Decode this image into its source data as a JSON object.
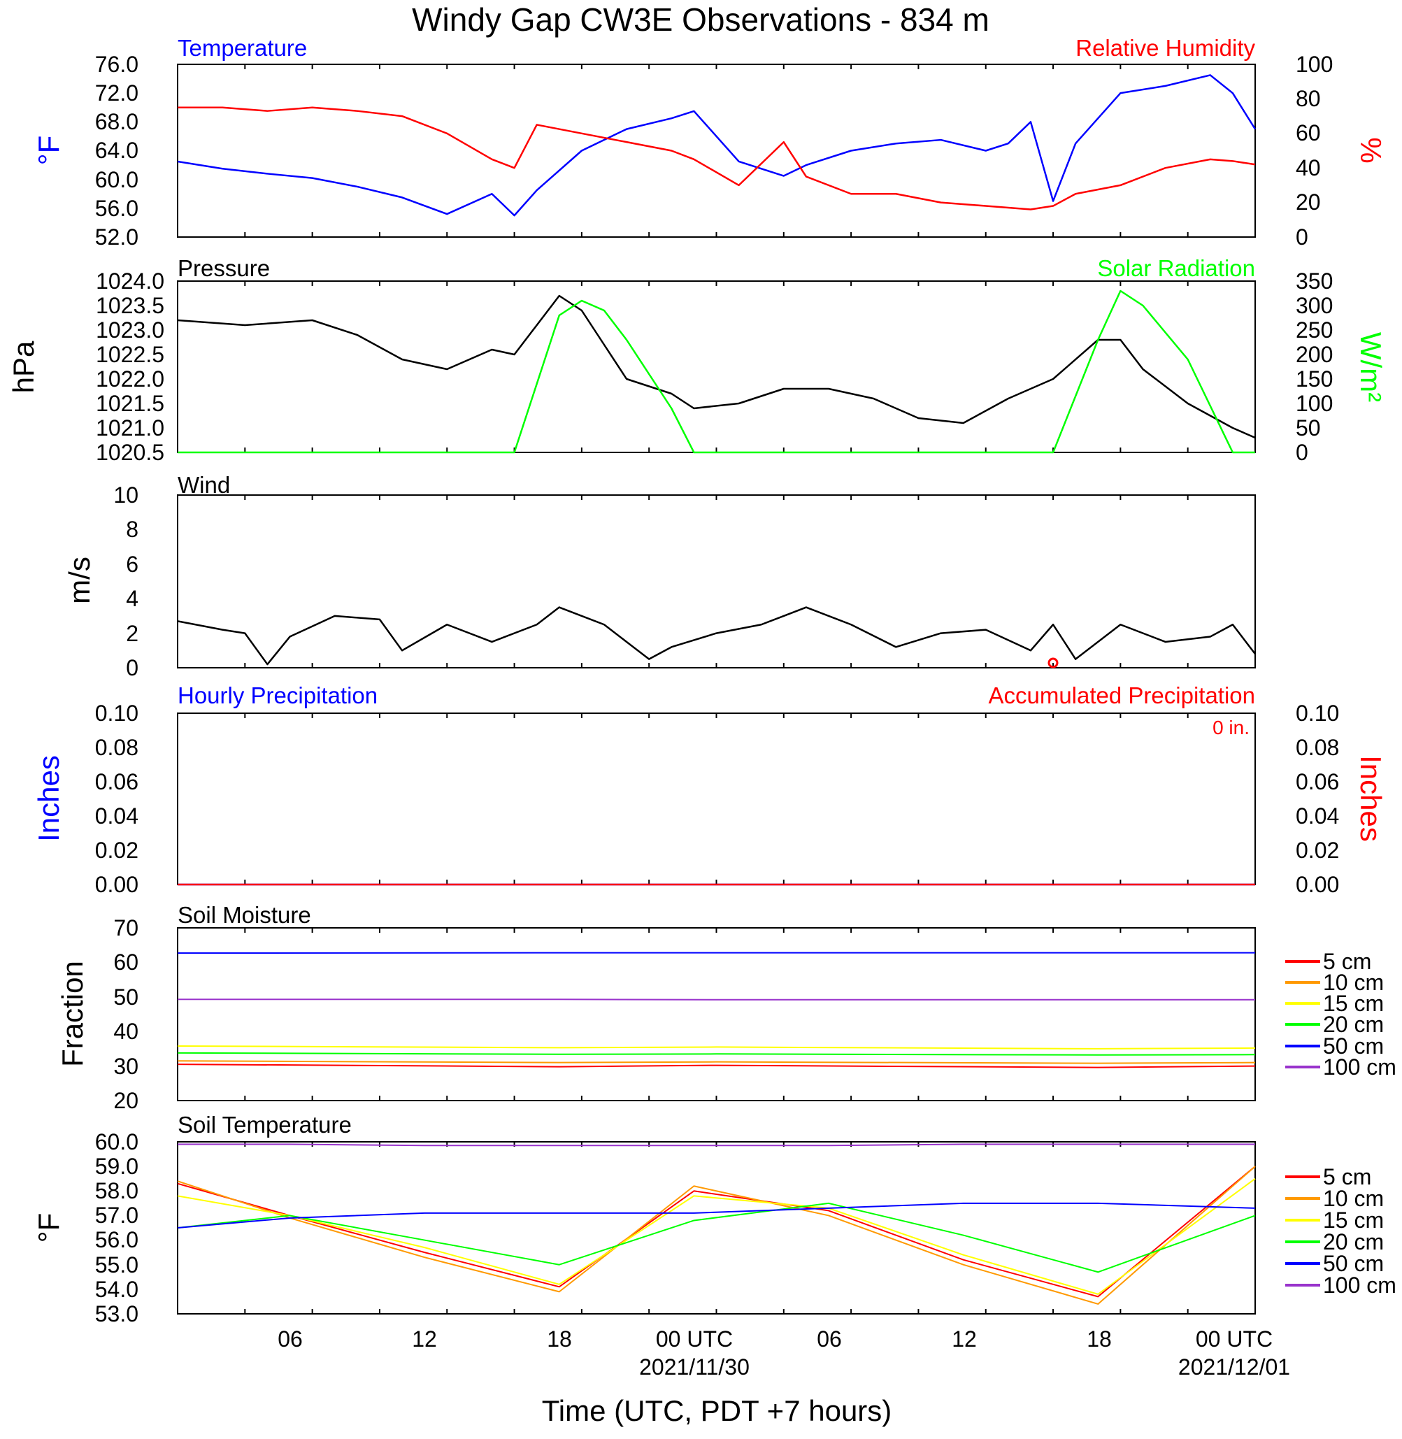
{
  "title": "Windy Gap CW3E Observations - 834 m",
  "x_axis": {
    "title": "Time (UTC, PDT +7 hours)",
    "tick_labels": [
      "06",
      "12",
      "18",
      "00 UTC",
      "06",
      "12",
      "18",
      "00 UTC"
    ],
    "date_labels": [
      "2021/11/30",
      "2021/12/01"
    ]
  },
  "panels": {
    "temperature": {
      "left_title": "Temperature",
      "right_title": "Relative Humidity",
      "left_unit": "°F",
      "right_unit": "%",
      "left_ticks": [
        "52.0",
        "56.0",
        "60.0",
        "64.0",
        "68.0",
        "72.0",
        "76.0"
      ],
      "right_ticks": [
        "0",
        "20",
        "40",
        "60",
        "80",
        "100"
      ]
    },
    "pressure": {
      "left_title": "Pressure",
      "right_title": "Solar Radiation",
      "left_unit": "hPa",
      "right_unit": "W/m²",
      "left_ticks": [
        "1020.5",
        "1021.0",
        "1021.5",
        "1022.0",
        "1022.5",
        "1023.0",
        "1023.5",
        "1024.0"
      ],
      "right_ticks": [
        "0",
        "50",
        "100",
        "150",
        "200",
        "250",
        "300",
        "350"
      ]
    },
    "wind": {
      "left_title": "Wind",
      "left_unit": "m/s",
      "left_ticks": [
        "0",
        "2",
        "4",
        "6",
        "8",
        "10"
      ]
    },
    "precip": {
      "left_title": "Hourly Precipitation",
      "right_title": "Accumulated Precipitation",
      "annotation": "0 in.",
      "left_unit": "Inches",
      "right_unit": "Inches",
      "left_ticks": [
        "0.00",
        "0.02",
        "0.04",
        "0.06",
        "0.08",
        "0.10"
      ],
      "right_ticks": [
        "0.00",
        "0.02",
        "0.04",
        "0.06",
        "0.08",
        "0.10"
      ]
    },
    "soil_moisture": {
      "left_title": "Soil Moisture",
      "left_unit": "Fraction",
      "left_ticks": [
        "20",
        "30",
        "40",
        "50",
        "60",
        "70"
      ],
      "legend": [
        "5 cm",
        "10 cm",
        "15 cm",
        "20 cm",
        "50 cm",
        "100 cm"
      ]
    },
    "soil_temperature": {
      "left_title": "Soil Temperature",
      "left_unit": "°F",
      "left_ticks": [
        "53.0",
        "54.0",
        "55.0",
        "56.0",
        "57.0",
        "58.0",
        "59.0",
        "60.0"
      ],
      "legend": [
        "5 cm",
        "10 cm",
        "15 cm",
        "20 cm",
        "50 cm",
        "100 cm"
      ]
    }
  },
  "chart_data": [
    {
      "type": "line",
      "title": "Temperature",
      "x": [
        "11/29 01",
        "11/29 03",
        "11/29 05",
        "11/29 07",
        "11/29 09",
        "11/29 11",
        "11/29 13",
        "11/29 15",
        "11/29 16",
        "11/29 17",
        "11/29 19",
        "11/29 21",
        "11/29 23",
        "11/30 00",
        "11/30 02",
        "11/30 04",
        "11/30 05",
        "11/30 07",
        "11/30 09",
        "11/30 11",
        "11/30 13",
        "11/30 14",
        "11/30 15",
        "11/30 16",
        "11/30 17",
        "11/30 19",
        "11/30 21",
        "11/30 23",
        "12/01 00",
        "12/01 01"
      ],
      "series": [
        {
          "name": "Temperature",
          "axis": "left",
          "color": "#0000ff",
          "values": [
            62.5,
            61.5,
            60.8,
            60.2,
            59.0,
            57.5,
            55.2,
            58.0,
            55.0,
            58.5,
            64.0,
            67.0,
            68.5,
            69.5,
            62.5,
            60.5,
            62.0,
            64.0,
            65.0,
            65.5,
            64.0,
            65.0,
            68.0,
            57.0,
            65.0,
            72.0,
            73.0,
            74.5,
            72.0,
            67.0
          ]
        },
        {
          "name": "Relative Humidity",
          "axis": "right",
          "color": "#ff0000",
          "values": [
            75,
            75,
            73,
            75,
            73,
            70,
            60,
            45,
            40,
            65,
            60,
            55,
            50,
            45,
            30,
            55,
            35,
            25,
            25,
            20,
            18,
            17,
            16,
            18,
            25,
            30,
            40,
            45,
            44,
            42
          ]
        }
      ],
      "left_ylim": [
        52,
        76
      ],
      "right_ylim": [
        0,
        100
      ]
    },
    {
      "type": "line",
      "title": "Pressure",
      "x": [
        "11/29 01",
        "11/29 04",
        "11/29 07",
        "11/29 09",
        "11/29 11",
        "11/29 13",
        "11/29 15",
        "11/29 16",
        "11/29 18",
        "11/29 19",
        "11/29 20",
        "11/29 21",
        "11/29 23",
        "11/30 00",
        "11/30 02",
        "11/30 04",
        "11/30 06",
        "11/30 08",
        "11/30 10",
        "11/30 12",
        "11/30 14",
        "11/30 16",
        "11/30 18",
        "11/30 19",
        "11/30 20",
        "11/30 22",
        "12/01 00",
        "12/01 01"
      ],
      "series": [
        {
          "name": "Pressure",
          "axis": "left",
          "color": "#000000",
          "values": [
            1023.2,
            1023.1,
            1023.2,
            1022.9,
            1022.4,
            1022.2,
            1022.6,
            1022.5,
            1023.7,
            1023.4,
            1022.7,
            1022.0,
            1021.7,
            1021.4,
            1021.5,
            1021.8,
            1021.8,
            1021.6,
            1021.2,
            1021.1,
            1021.6,
            1022.0,
            1022.8,
            1022.8,
            1022.2,
            1021.5,
            1021.0,
            1020.8
          ]
        },
        {
          "name": "Solar Radiation",
          "axis": "right",
          "color": "#00ff00",
          "values": [
            0,
            0,
            0,
            0,
            0,
            0,
            0,
            0,
            280,
            310,
            290,
            230,
            90,
            0,
            0,
            0,
            0,
            0,
            0,
            0,
            0,
            0,
            230,
            330,
            300,
            190,
            0,
            0
          ]
        }
      ],
      "left_ylim": [
        1020.5,
        1024.0
      ],
      "right_ylim": [
        0,
        350
      ]
    },
    {
      "type": "line",
      "title": "Wind",
      "x": [
        "11/29 01",
        "11/29 03",
        "11/29 04",
        "11/29 05",
        "11/29 06",
        "11/29 08",
        "11/29 10",
        "11/29 11",
        "11/29 13",
        "11/29 15",
        "11/29 17",
        "11/29 18",
        "11/29 20",
        "11/29 21",
        "11/29 22",
        "11/29 23",
        "11/30 01",
        "11/30 03",
        "11/30 04",
        "11/30 05",
        "11/30 07",
        "11/30 09",
        "11/30 11",
        "11/30 13",
        "11/30 15",
        "11/30 16",
        "11/30 17",
        "11/30 19",
        "11/30 21",
        "11/30 23",
        "12/01 00",
        "12/01 01"
      ],
      "series": [
        {
          "name": "Wind",
          "color": "#000000",
          "values": [
            2.7,
            2.2,
            2.0,
            0.2,
            1.8,
            3.0,
            2.8,
            1.0,
            2.5,
            1.5,
            2.5,
            3.5,
            2.5,
            1.5,
            0.5,
            1.2,
            2.0,
            2.5,
            3.0,
            3.5,
            2.5,
            1.2,
            2.0,
            2.2,
            1.0,
            2.5,
            0.5,
            2.5,
            1.5,
            1.8,
            2.5,
            0.8
          ]
        }
      ],
      "ylim": [
        0,
        10
      ]
    },
    {
      "type": "line",
      "title": "Hourly Precipitation",
      "series": [
        {
          "name": "Hourly Precipitation",
          "color": "#0000ff",
          "values": [
            0,
            0
          ]
        },
        {
          "name": "Accumulated Precipitation",
          "color": "#ff0000",
          "values": [
            0,
            0
          ]
        }
      ],
      "ylim": [
        0,
        0.1
      ]
    },
    {
      "type": "line",
      "title": "Soil Moisture",
      "x": [
        "11/29 01",
        "11/29 18",
        "11/30 01",
        "11/30 18",
        "12/01 01"
      ],
      "series": [
        {
          "name": "5 cm",
          "color": "#ff0000",
          "values": [
            30.5,
            29.8,
            30.2,
            29.6,
            30.0
          ]
        },
        {
          "name": "10 cm",
          "color": "#ff9900",
          "values": [
            31.5,
            31.0,
            31.2,
            30.8,
            31.0
          ]
        },
        {
          "name": "15 cm",
          "color": "#ffff00",
          "values": [
            35.8,
            35.3,
            35.5,
            35.0,
            35.2
          ]
        },
        {
          "name": "20 cm",
          "color": "#00ff00",
          "values": [
            33.8,
            33.4,
            33.5,
            33.2,
            33.3
          ]
        },
        {
          "name": "50 cm",
          "color": "#0000ff",
          "values": [
            62.7,
            62.8,
            62.8,
            62.8,
            62.8
          ]
        },
        {
          "name": "100 cm",
          "color": "#9933cc",
          "values": [
            49.3,
            49.3,
            49.2,
            49.2,
            49.2
          ]
        }
      ],
      "ylim": [
        20,
        70
      ]
    },
    {
      "type": "line",
      "title": "Soil Temperature",
      "x": [
        "11/29 01",
        "11/29 06",
        "11/29 12",
        "11/29 18",
        "11/30 00",
        "11/30 06",
        "11/30 12",
        "11/30 18",
        "12/01 01"
      ],
      "series": [
        {
          "name": "5 cm",
          "color": "#ff0000",
          "values": [
            58.3,
            57.0,
            55.5,
            54.1,
            58.0,
            57.2,
            55.2,
            53.7,
            59.0
          ]
        },
        {
          "name": "10 cm",
          "color": "#ff9900",
          "values": [
            58.4,
            56.9,
            55.3,
            53.9,
            58.2,
            57.0,
            55.0,
            53.4,
            59.0
          ]
        },
        {
          "name": "15 cm",
          "color": "#ffff00",
          "values": [
            57.8,
            57.0,
            55.7,
            54.2,
            57.8,
            57.3,
            55.4,
            53.8,
            58.5
          ]
        },
        {
          "name": "20 cm",
          "color": "#00ff00",
          "values": [
            56.5,
            57.0,
            56.0,
            55.0,
            56.8,
            57.5,
            56.2,
            54.7,
            57.0
          ]
        },
        {
          "name": "50 cm",
          "color": "#0000ff",
          "values": [
            56.5,
            56.9,
            57.1,
            57.1,
            57.1,
            57.3,
            57.5,
            57.5,
            57.3
          ]
        },
        {
          "name": "100 cm",
          "color": "#9933cc",
          "values": [
            59.9,
            59.9,
            59.85,
            59.85,
            59.85,
            59.85,
            59.9,
            59.9,
            59.9
          ]
        }
      ],
      "ylim": [
        53,
        60
      ]
    }
  ],
  "colors": {
    "blue": "#0000ff",
    "red": "#ff0000",
    "green": "#00ff00",
    "black": "#000000",
    "orange": "#ff9900",
    "yellow": "#ffff00",
    "purple": "#9933cc"
  }
}
